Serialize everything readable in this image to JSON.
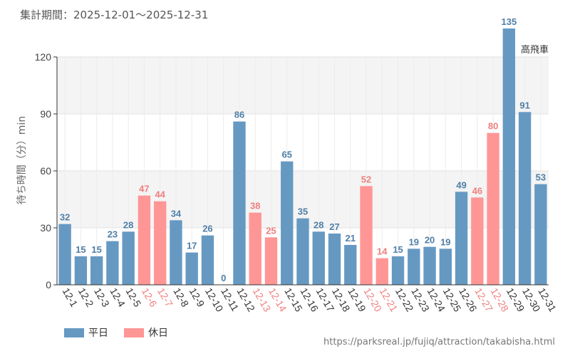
{
  "header": {
    "period": "集計期間：2025-12-01～2025-12-31"
  },
  "source_url": "https://parksreal.jp/fujiq/attraction/takabisha.html",
  "colors": {
    "weekday": "#6699c2",
    "holiday": "#ff9696",
    "weekday_label": "#4f7fa8",
    "holiday_label": "#f07f7f"
  },
  "chart_data": {
    "type": "bar",
    "title": "",
    "annotation": "高飛車",
    "xlabel": "",
    "ylabel": "待ち時間（分）min",
    "ylim": [
      0,
      120
    ],
    "yticks": [
      0,
      30,
      60,
      90,
      120
    ],
    "categories": [
      "12-1",
      "12-2",
      "12-3",
      "12-4",
      "12-5",
      "12-6",
      "12-7",
      "12-8",
      "12-9",
      "12-10",
      "12-11",
      "12-12",
      "12-13",
      "12-14",
      "12-15",
      "12-16",
      "12-17",
      "12-18",
      "12-19",
      "12-20",
      "12-21",
      "12-22",
      "12-23",
      "12-24",
      "12-25",
      "12-26",
      "12-27",
      "12-28",
      "12-29",
      "12-30",
      "12-31"
    ],
    "values": [
      32,
      15,
      15,
      23,
      28,
      47,
      44,
      34,
      17,
      26,
      0,
      86,
      38,
      25,
      65,
      35,
      28,
      27,
      21,
      52,
      14,
      15,
      19,
      20,
      19,
      49,
      46,
      80,
      135,
      91,
      53
    ],
    "day_type": [
      "平日",
      "平日",
      "平日",
      "平日",
      "平日",
      "休日",
      "休日",
      "平日",
      "平日",
      "平日",
      "平日",
      "平日",
      "休日",
      "休日",
      "平日",
      "平日",
      "平日",
      "平日",
      "平日",
      "休日",
      "休日",
      "平日",
      "平日",
      "平日",
      "平日",
      "平日",
      "休日",
      "休日",
      "平日",
      "平日",
      "平日"
    ],
    "legend": [
      {
        "label": "平日",
        "color": "#6699c2"
      },
      {
        "label": "休日",
        "color": "#ff9696"
      }
    ]
  }
}
